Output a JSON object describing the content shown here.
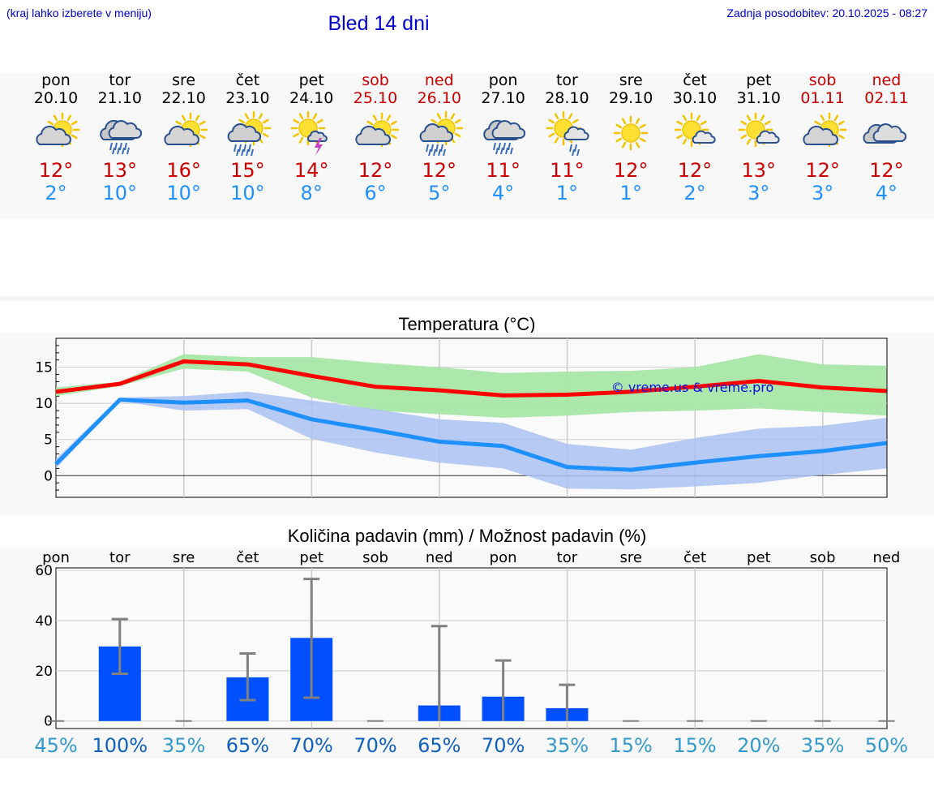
{
  "header": {
    "hint": "(kraj lahko izberete v meniju)",
    "title": "Bled 14 dni",
    "updated": "Zadnja posodobitev: 20.10.2025 - 08:27"
  },
  "days": [
    {
      "name": "pon",
      "date": "20.10",
      "weekend": false,
      "icon": "partly-cloudy-icon",
      "tmax": "12°",
      "tmin": "2°"
    },
    {
      "name": "tor",
      "date": "21.10",
      "weekend": false,
      "icon": "rain-cloud-icon",
      "tmax": "13°",
      "tmin": "10°"
    },
    {
      "name": "sre",
      "date": "22.10",
      "weekend": false,
      "icon": "partly-cloudy-icon",
      "tmax": "16°",
      "tmin": "10°"
    },
    {
      "name": "čet",
      "date": "23.10",
      "weekend": false,
      "icon": "sun-rain-icon",
      "tmax": "15°",
      "tmin": "10°"
    },
    {
      "name": "pet",
      "date": "24.10",
      "weekend": false,
      "icon": "sun-thunder-icon",
      "tmax": "14°",
      "tmin": "8°"
    },
    {
      "name": "sob",
      "date": "25.10",
      "weekend": true,
      "icon": "partly-cloudy-icon",
      "tmax": "12°",
      "tmin": "6°"
    },
    {
      "name": "ned",
      "date": "26.10",
      "weekend": true,
      "icon": "sun-rain-icon",
      "tmax": "12°",
      "tmin": "5°"
    },
    {
      "name": "pon",
      "date": "27.10",
      "weekend": false,
      "icon": "rain-cloud-icon",
      "tmax": "11°",
      "tmin": "4°"
    },
    {
      "name": "tor",
      "date": "28.10",
      "weekend": false,
      "icon": "sun-light-rain-icon",
      "tmax": "11°",
      "tmin": "1°"
    },
    {
      "name": "sre",
      "date": "29.10",
      "weekend": false,
      "icon": "sun-icon",
      "tmax": "12°",
      "tmin": "1°"
    },
    {
      "name": "čet",
      "date": "30.10",
      "weekend": false,
      "icon": "sun-small-cloud-icon",
      "tmax": "12°",
      "tmin": "2°"
    },
    {
      "name": "pet",
      "date": "31.10",
      "weekend": false,
      "icon": "sun-small-cloud-icon",
      "tmax": "13°",
      "tmin": "3°"
    },
    {
      "name": "sob",
      "date": "01.11",
      "weekend": true,
      "icon": "partly-cloudy-icon",
      "tmax": "12°",
      "tmin": "3°"
    },
    {
      "name": "ned",
      "date": "02.11",
      "weekend": true,
      "icon": "cloudy-icon",
      "tmax": "12°",
      "tmin": "4°"
    }
  ],
  "colors": {
    "max_line": "#ff0000",
    "min_line": "#1e90ff",
    "max_band": "#a8e6a8",
    "min_band": "#a9c1f2",
    "bar": "#0050ff",
    "err": "#808080",
    "prob_dark": "#1060c0",
    "prob_light": "#3399cc"
  },
  "chart_data": [
    {
      "type": "line",
      "title": "Temperatura (°C)",
      "watermark": "© vreme.us & vreme.pro",
      "ylim": [
        -3,
        19
      ],
      "yticks": [
        0,
        5,
        10,
        15
      ],
      "series": [
        {
          "name": "max",
          "values": [
            11.6,
            12.7,
            15.8,
            15.4,
            13.8,
            12.3,
            11.8,
            11.1,
            11.2,
            11.6,
            12.3,
            13.1,
            12.2,
            11.7
          ],
          "band_low": [
            11.0,
            12.4,
            14.8,
            14.4,
            10.8,
            9.0,
            8.5,
            8.0,
            8.3,
            8.8,
            9.0,
            9.3,
            8.8,
            8.3
          ],
          "band_high": [
            12.2,
            13.0,
            16.8,
            16.4,
            16.4,
            15.6,
            15.0,
            14.2,
            14.4,
            14.5,
            15.0,
            16.8,
            15.4,
            15.2
          ]
        },
        {
          "name": "min",
          "values": [
            1.6,
            10.5,
            10.1,
            10.4,
            7.8,
            6.3,
            4.7,
            4.1,
            1.2,
            0.8,
            1.8,
            2.7,
            3.4,
            4.5
          ],
          "band_low": [
            1.0,
            10.3,
            9.0,
            9.2,
            5.1,
            3.2,
            1.8,
            1.0,
            -1.8,
            -1.9,
            -1.5,
            -1.0,
            0.1,
            1.0
          ],
          "band_high": [
            2.3,
            10.8,
            11.0,
            11.6,
            10.4,
            9.2,
            7.8,
            7.3,
            4.4,
            3.6,
            5.2,
            6.5,
            6.9,
            8.0
          ]
        }
      ]
    },
    {
      "type": "bar",
      "title": "Količina padavin (mm) / Možnost padavin (%)",
      "ylim": [
        -3,
        61
      ],
      "yticks": [
        0,
        20,
        40,
        60
      ],
      "categories": [
        "pon",
        "tor",
        "sre",
        "čet",
        "pet",
        "sob",
        "ned",
        "pon",
        "tor",
        "sre",
        "čet",
        "pet",
        "sob",
        "ned"
      ],
      "values": [
        0,
        29.7,
        0,
        17.4,
        33.1,
        0,
        6.2,
        9.7,
        5.1,
        0,
        0,
        0,
        0,
        0
      ],
      "err_low": [
        0,
        18.8,
        0,
        8.3,
        9.3,
        0,
        0,
        0,
        0,
        0,
        0,
        0,
        0,
        0
      ],
      "err_high": [
        0,
        40.6,
        0,
        26.9,
        56.6,
        0,
        37.8,
        24.1,
        14.4,
        0,
        0,
        0,
        0,
        0
      ],
      "probability": [
        "45%",
        "100%",
        "35%",
        "65%",
        "70%",
        "70%",
        "65%",
        "70%",
        "35%",
        "15%",
        "15%",
        "20%",
        "35%",
        "50%"
      ],
      "probability_shade": [
        "light",
        "dark",
        "light",
        "dark",
        "dark",
        "dark",
        "dark",
        "dark",
        "light",
        "light",
        "light",
        "light",
        "light",
        "light"
      ]
    }
  ]
}
